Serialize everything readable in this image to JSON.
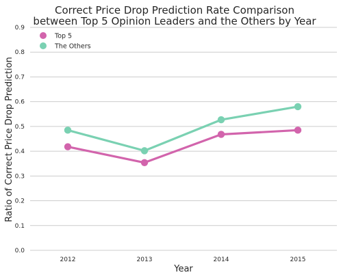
{
  "chart_data": {
    "type": "line",
    "title_line1": "Correct Price Drop Prediction Rate Comparison",
    "title_line2": "between Top 5 Opinion Leaders and the Others by Year",
    "xlabel": "Year",
    "ylabel": "Ratio of Correct Price Drop Prediction",
    "categories": [
      "2012",
      "2013",
      "2014",
      "2015"
    ],
    "ylim": [
      0.0,
      0.9
    ],
    "yticks": [
      "0.0",
      "0.1",
      "0.2",
      "0.3",
      "0.4",
      "0.5",
      "0.6",
      "0.7",
      "0.8",
      "0.9"
    ],
    "grid": "horizontal",
    "legend_position": "top-left",
    "series": [
      {
        "name": "Top 5",
        "color": "#d264ac",
        "values": [
          0.418,
          0.354,
          0.468,
          0.485
        ]
      },
      {
        "name": "The Others",
        "color": "#7ad1b2",
        "values": [
          0.485,
          0.402,
          0.527,
          0.58
        ]
      }
    ]
  }
}
